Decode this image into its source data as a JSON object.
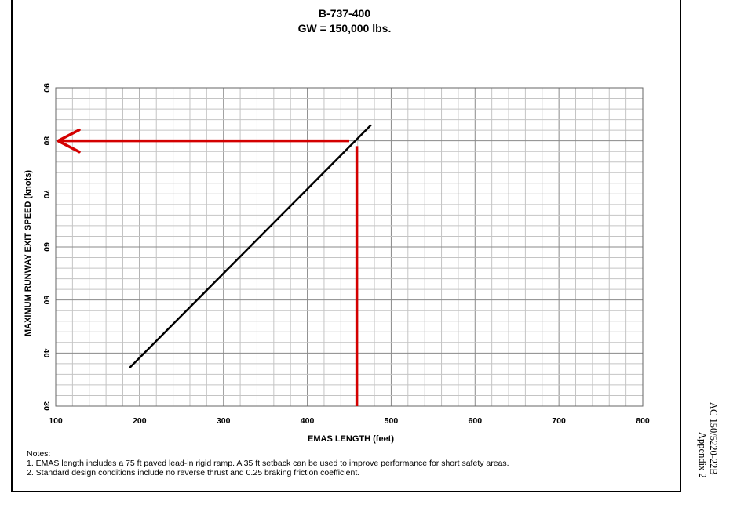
{
  "chart_data": {
    "type": "line",
    "title": "B-737-400",
    "subtitle": "GW = 150,000 lbs.",
    "xlabel": "EMAS LENGTH (feet)",
    "ylabel": "MAXIMUM RUNWAY EXIT SPEED (knots)",
    "xlim": [
      100,
      800
    ],
    "ylim": [
      30,
      90
    ],
    "xticks": [
      "100",
      "200",
      "300",
      "400",
      "500",
      "600",
      "700",
      "800"
    ],
    "yticks": [
      "30",
      "40",
      "50",
      "60",
      "70",
      "80",
      "90"
    ],
    "grid": true,
    "series": [
      {
        "x": [
          188,
          476
        ],
        "y": [
          37.2,
          83.0
        ],
        "color": "#000000"
      }
    ],
    "annotations": [
      {
        "type": "vertical-line",
        "x": 459,
        "y": [
          30,
          79
        ],
        "color": "#d40000"
      },
      {
        "type": "arrow",
        "from": [
          450,
          80
        ],
        "to": [
          100,
          80
        ],
        "color": "#d40000"
      }
    ],
    "notes": [
      "Notes:",
      "1. EMAS length includes a 75 ft paved lead-in rigid ramp.  A 35 ft setback can be used to improve performance for short safety areas.",
      "2. Standard design conditions include no reverse thrust and 0.25 braking friction coefficient."
    ]
  },
  "page": {
    "side_text_1": "AC 150/5220-22B",
    "side_text_2": "Appendix 2"
  }
}
